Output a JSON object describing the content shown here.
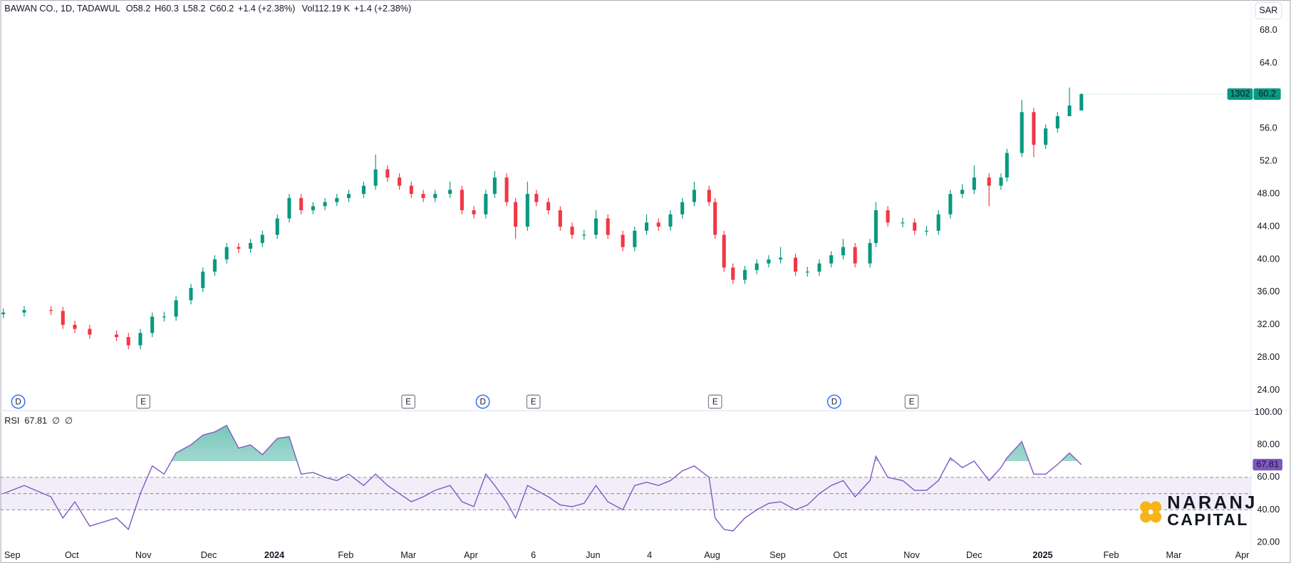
{
  "chart_data": {
    "type": "candlestick",
    "header": {
      "symbol": "BAWAN CO., 1D, TADAWUL",
      "items": [
        {
          "label": "O",
          "value": "58.2"
        },
        {
          "label": "H",
          "value": "60.3"
        },
        {
          "label": "L",
          "value": "58.2"
        },
        {
          "label": "C",
          "value": "60.2"
        }
      ],
      "change": "+1.4 (+2.38%)",
      "volume_label": "Vol",
      "volume": "112.19 K",
      "volume_change": "+1.4 (+2.38%)"
    },
    "currency": "SAR",
    "price_tag_timer": "1302",
    "colors": {
      "up": "#089981",
      "down": "#f23645",
      "rsi": "#7e57c2"
    },
    "x": [
      1,
      8,
      17,
      21,
      25,
      30,
      39,
      43,
      47,
      51,
      55,
      59,
      64,
      68,
      72,
      76,
      80,
      84,
      88,
      93,
      97,
      101,
      105,
      109,
      113,
      117,
      122,
      126,
      130,
      134,
      138,
      142,
      146,
      151,
      155,
      159,
      163,
      166,
      170,
      173,
      177,
      180,
      184,
      188,
      192,
      196,
      200,
      204,
      209,
      213,
      217,
      221,
      225,
      229,
      233,
      238,
      240,
      243,
      246,
      250,
      254,
      258,
      262,
      267,
      271,
      275,
      279,
      283,
      287,
      292,
      294,
      298,
      303,
      307,
      311,
      315,
      319,
      323,
      327,
      332,
      336,
      338,
      343,
      347,
      351,
      355,
      359,
      363
    ],
    "open": [
      33.3,
      33.5,
      33.8,
      33.7,
      32,
      31.5,
      30.8,
      30.5,
      29.5,
      31,
      33,
      33,
      35,
      36.5,
      38.5,
      40,
      41.5,
      41.3,
      42,
      43,
      45,
      47.5,
      46,
      46.5,
      47,
      47.5,
      48,
      49,
      51,
      50,
      49,
      48,
      47.5,
      48,
      48.5,
      46,
      45.5,
      48,
      50,
      47,
      44,
      48,
      47,
      46,
      44,
      43,
      43,
      45,
      43,
      41.5,
      43.5,
      44.5,
      44,
      45.5,
      47,
      48.5,
      47,
      43,
      39,
      37.5,
      38.7,
      39.5,
      40,
      40.2,
      38.5,
      38.5,
      39.5,
      40.5,
      41.5,
      39.5,
      42,
      46,
      44.5,
      44.5,
      43.5,
      43.5,
      45.5,
      48,
      48.5,
      50,
      49,
      50,
      53,
      58,
      54,
      56,
      57.5,
      58.2
    ],
    "high": [
      34,
      34.3,
      34.3,
      34.2,
      32.5,
      32,
      31.3,
      31,
      31.5,
      33.5,
      33.6,
      35.5,
      37,
      39,
      40.5,
      42,
      42,
      42.5,
      43.5,
      45.5,
      48,
      48,
      47,
      47.5,
      48,
      48.5,
      49.5,
      52.8,
      51.5,
      50.5,
      49.5,
      48.5,
      48.5,
      49.5,
      49,
      46.5,
      48.5,
      50.8,
      50.5,
      47.5,
      49.5,
      48.5,
      47.5,
      46.5,
      44.5,
      43.6,
      46,
      45.5,
      43.5,
      44,
      45.5,
      45,
      46,
      47.5,
      49.5,
      49,
      47.5,
      43.5,
      39.5,
      39.2,
      40,
      40.5,
      41.5,
      40.7,
      39.1,
      40,
      41,
      42.5,
      42,
      42.5,
      47,
      46.5,
      45.1,
      45,
      44.1,
      46,
      48.5,
      49.2,
      51.5,
      50.5,
      50.5,
      53.5,
      59.5,
      58.5,
      56.5,
      58,
      61,
      60.3
    ],
    "low": [
      32.8,
      33,
      33.2,
      31.5,
      31,
      30.3,
      30,
      29,
      29,
      30.5,
      32.4,
      32.5,
      34.5,
      36,
      38,
      39.5,
      40.8,
      40.8,
      41.5,
      42.5,
      44.5,
      45.5,
      45.5,
      46,
      46.5,
      47,
      47.5,
      48.5,
      49.5,
      48.5,
      47.5,
      47,
      47,
      47.5,
      45.5,
      45,
      45,
      47.5,
      46.5,
      42.5,
      43.5,
      46.5,
      45.5,
      43.5,
      42.5,
      42.4,
      42.5,
      42.5,
      41,
      41,
      43,
      43.5,
      43.5,
      45,
      46.5,
      46.5,
      42.5,
      38.5,
      37,
      37,
      38.2,
      39,
      39.5,
      38,
      37.9,
      38,
      39,
      40,
      39,
      39,
      41.5,
      44,
      43.9,
      43,
      42.9,
      43,
      45,
      47.5,
      48,
      46.5,
      48.5,
      49.5,
      52.5,
      52.5,
      53.5,
      55.5,
      57.5,
      58.2
    ],
    "close": [
      33.5,
      33.8,
      33.7,
      32,
      31.5,
      30.8,
      30.5,
      29.5,
      31,
      33,
      33,
      35,
      36.5,
      38.5,
      40,
      41.5,
      41.3,
      42,
      43,
      45,
      47.5,
      46,
      46.5,
      47,
      47.5,
      48,
      49,
      51,
      50,
      49,
      48,
      47.5,
      48,
      48.5,
      46,
      45.5,
      48,
      50,
      47,
      44,
      48,
      47,
      46,
      44,
      43,
      43,
      45,
      43,
      41.5,
      43.5,
      44.5,
      44,
      45.5,
      47,
      48.5,
      47,
      43,
      39,
      37.5,
      38.7,
      39.5,
      40,
      40.2,
      38.5,
      38.5,
      39.5,
      40.5,
      41.5,
      39.5,
      42,
      46,
      44.5,
      44.5,
      43.5,
      43.5,
      45.5,
      48,
      48.5,
      50,
      49,
      50,
      53,
      58,
      54,
      56,
      57.5,
      58.8,
      60.2
    ],
    "xlim": [
      0,
      420
    ],
    "xticks": [
      {
        "value": 4,
        "label": "Sep"
      },
      {
        "value": 24,
        "label": "Oct"
      },
      {
        "value": 48,
        "label": "Nov"
      },
      {
        "value": 70,
        "label": "Dec"
      },
      {
        "value": 92,
        "label": "2024"
      },
      {
        "value": 116,
        "label": "Feb"
      },
      {
        "value": 137,
        "label": "Mar"
      },
      {
        "value": 158,
        "label": "Apr"
      },
      {
        "value": 179,
        "label": "6"
      },
      {
        "value": 199,
        "label": "Jun"
      },
      {
        "value": 218,
        "label": "4"
      },
      {
        "value": 239,
        "label": "Aug"
      },
      {
        "value": 261,
        "label": "Sep"
      },
      {
        "value": 282,
        "label": "Oct"
      },
      {
        "value": 306,
        "label": "Nov"
      },
      {
        "value": 327,
        "label": "Dec"
      },
      {
        "value": 350,
        "label": "2025"
      },
      {
        "value": 373,
        "label": "Feb"
      },
      {
        "value": 394,
        "label": "Mar"
      },
      {
        "value": 417,
        "label": "Apr"
      }
    ],
    "ylim": [
      21.6,
      71.7
    ],
    "yticks": [
      {
        "value": 24,
        "label": "24.00"
      },
      {
        "value": 28,
        "label": "28.00"
      },
      {
        "value": 32,
        "label": "32.00"
      },
      {
        "value": 36,
        "label": "36.00"
      },
      {
        "value": 40,
        "label": "40.00"
      },
      {
        "value": 44,
        "label": "44.00"
      },
      {
        "value": 48,
        "label": "48.00"
      },
      {
        "value": 52,
        "label": "52.0"
      },
      {
        "value": 56,
        "label": "56.0"
      },
      {
        "value": 64,
        "label": "64.0"
      },
      {
        "value": 68,
        "label": "68.0"
      }
    ],
    "grid": false,
    "events": [
      {
        "label": "D",
        "x": 6
      },
      {
        "label": "E",
        "x": 48
      },
      {
        "label": "E",
        "x": 137
      },
      {
        "label": "D",
        "x": 162
      },
      {
        "label": "E",
        "x": 179
      },
      {
        "label": "E",
        "x": 240
      },
      {
        "label": "D",
        "x": 280
      },
      {
        "label": "E",
        "x": 306
      }
    ],
    "rsi": {
      "label": "RSI",
      "symbols": [
        "∅",
        "∅"
      ],
      "values": [
        50,
        55,
        48,
        35,
        45,
        30,
        35,
        28,
        50,
        67,
        62,
        75,
        80,
        86,
        88,
        92,
        78,
        80,
        74,
        84,
        85,
        62,
        63,
        60,
        58,
        62,
        55,
        62,
        55,
        50,
        45,
        48,
        52,
        55,
        45,
        42,
        62,
        55,
        45,
        35,
        55,
        52,
        48,
        43,
        42,
        44,
        55,
        45,
        40,
        55,
        57,
        55,
        58,
        64,
        67,
        60,
        35,
        28,
        27,
        35,
        40,
        44,
        45,
        40,
        43,
        50,
        55,
        58,
        48,
        58,
        73,
        60,
        58,
        52,
        52,
        58,
        72,
        66,
        70,
        58,
        66,
        72,
        82,
        62,
        62,
        68,
        75,
        67.81
      ],
      "ylim": [
        15.4,
        100.5
      ],
      "yticks": [
        {
          "value": 20,
          "label": "20.00"
        },
        {
          "value": 40,
          "label": "40.00"
        },
        {
          "value": 60,
          "label": "60.00"
        },
        {
          "value": 80,
          "label": "80.00"
        },
        {
          "value": 100,
          "label": "100.00"
        }
      ],
      "levels": [
        60,
        50,
        40
      ],
      "overbought": 70
    },
    "watermark": [
      "NARANJ",
      "CAPITAL"
    ]
  }
}
